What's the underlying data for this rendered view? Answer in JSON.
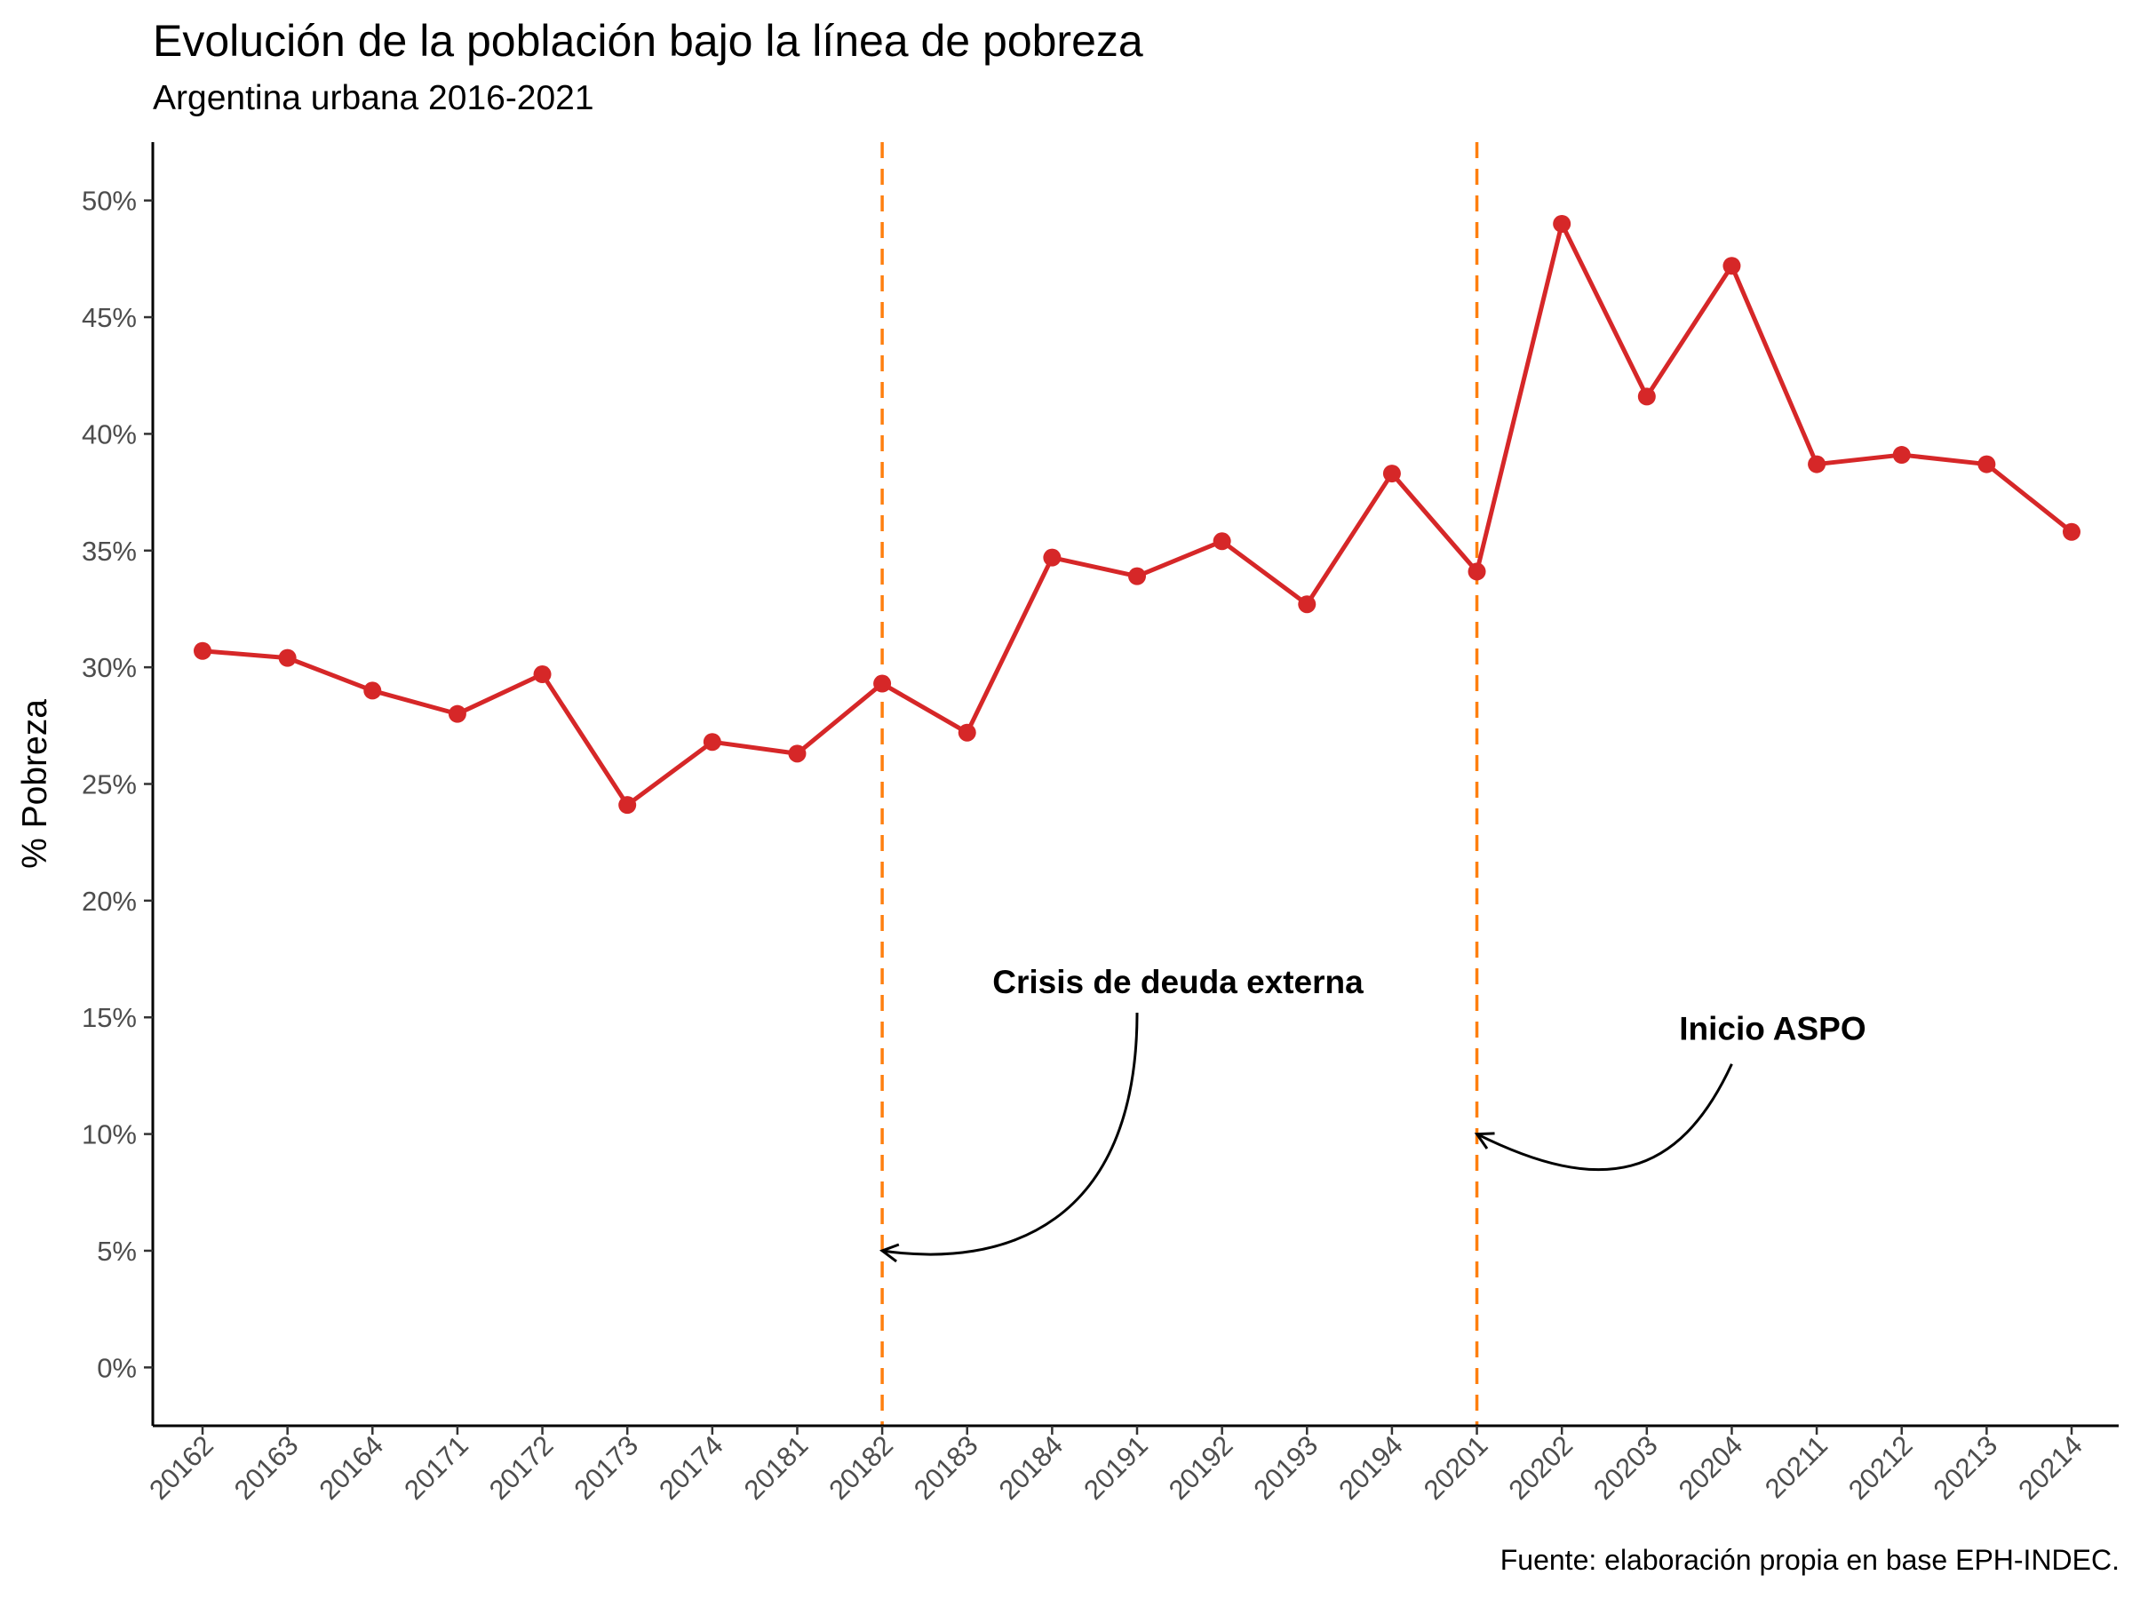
{
  "chart_data": {
    "type": "line",
    "title": "Evolución de la población bajo la línea de pobreza",
    "subtitle": "Argentina urbana 2016-2021",
    "caption": "Fuente: elaboración propia en base EPH-INDEC.",
    "xlabel": "",
    "ylabel": "% Pobreza",
    "ylim": [
      -2.5,
      52.5
    ],
    "yticks": [
      0,
      5,
      10,
      15,
      20,
      25,
      30,
      35,
      40,
      45,
      50
    ],
    "ytick_suffix": "%",
    "grid": false,
    "categories": [
      "20162",
      "20163",
      "20164",
      "20171",
      "20172",
      "20173",
      "20174",
      "20181",
      "20182",
      "20183",
      "20184",
      "20191",
      "20192",
      "20193",
      "20194",
      "20201",
      "20202",
      "20203",
      "20204",
      "20211",
      "20212",
      "20213",
      "20214"
    ],
    "series": [
      {
        "color": "#d62728",
        "values": [
          30.7,
          30.4,
          29.0,
          28.0,
          29.7,
          24.1,
          26.8,
          26.3,
          29.3,
          27.2,
          34.7,
          33.9,
          35.4,
          32.7,
          38.3,
          34.1,
          49.0,
          41.6,
          47.2,
          38.7,
          39.1,
          38.7,
          35.8
        ]
      }
    ],
    "vlines": [
      {
        "x": "20182",
        "color": "#ff7f0e",
        "style": "dashed"
      },
      {
        "x": "20201",
        "color": "#ff7f0e",
        "style": "dashed"
      }
    ],
    "annotations": [
      {
        "text": "Crisis de deuda externa",
        "x": "20191",
        "y": 16.5,
        "arrow_from": {
          "x": "20191",
          "y": 15.2
        },
        "arrow_to": {
          "x": "20182",
          "y": 5.0
        }
      },
      {
        "text": "Inicio ASPO",
        "x": "20204",
        "y": 14.5,
        "arrow_from": {
          "x": "20204",
          "y": 13.0
        },
        "arrow_to": {
          "x": "20201",
          "y": 10.0
        }
      }
    ]
  }
}
